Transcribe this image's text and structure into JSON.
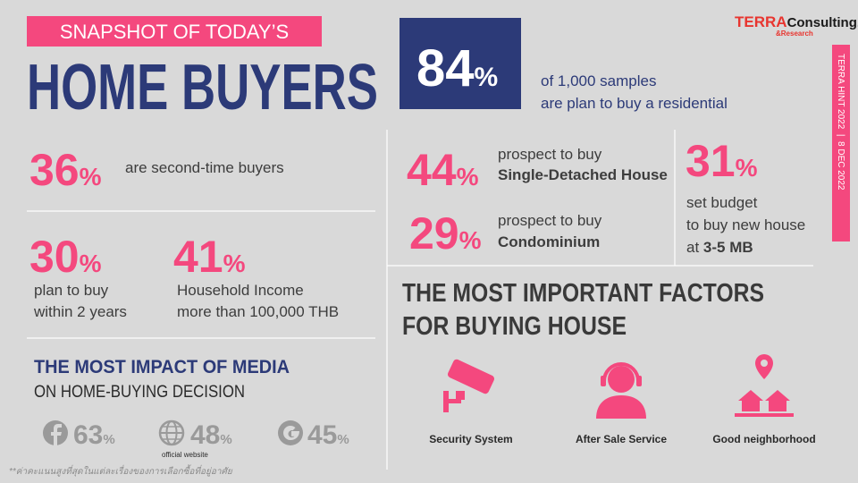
{
  "header": {
    "kicker": "SNAPSHOT OF TODAY’S",
    "title": "HOME BUYERS",
    "brand": "TERRA",
    "brand_suffix": "Consulting.",
    "brand_sub": "&Research",
    "side_tag": "TERRA HINT 2022  |  8 DEC 2022"
  },
  "headline": {
    "value": "84",
    "unit": "%",
    "lines": [
      "of 1,000 samples",
      "are plan to buy a residential"
    ]
  },
  "stats": [
    {
      "value": "36",
      "unit": "%",
      "lines": [
        "are second-time buyers"
      ]
    },
    {
      "value": "30",
      "unit": "%",
      "lines": [
        "plan to buy",
        "within 2 years"
      ]
    },
    {
      "value": "41",
      "unit": "%",
      "lines": [
        "Household Income",
        "more than 100,000 THB"
      ]
    },
    {
      "value": "44",
      "unit": "%",
      "lines": [
        "prospect to buy"
      ],
      "bold": "Single-Detached House"
    },
    {
      "value": "29",
      "unit": "%",
      "lines": [
        "prospect to buy"
      ],
      "bold": "Condominium"
    },
    {
      "value": "31",
      "unit": "%",
      "lines": [
        "set budget",
        "to buy new house",
        "at "
      ],
      "bold": "3-5 MB"
    }
  ],
  "media": {
    "title": "THE MOST IMPACT OF MEDIA",
    "subtitle": "ON HOME-BUYING DECISION",
    "items": [
      {
        "value": "63",
        "unit": "%"
      },
      {
        "value": "48",
        "unit": "%",
        "caption": "official website"
      },
      {
        "value": "45",
        "unit": "%"
      }
    ],
    "footnote": "**ค่าคะแนนสูงที่สุดในแต่ละเรื่องของการเลือกซื้อที่อยู่อาศัย"
  },
  "factors": {
    "title": [
      "THE MOST IMPORTANT FACTORS",
      "FOR BUYING HOUSE"
    ],
    "items": [
      "Security System",
      "After Sale Service",
      "Good neighborhood"
    ]
  }
}
